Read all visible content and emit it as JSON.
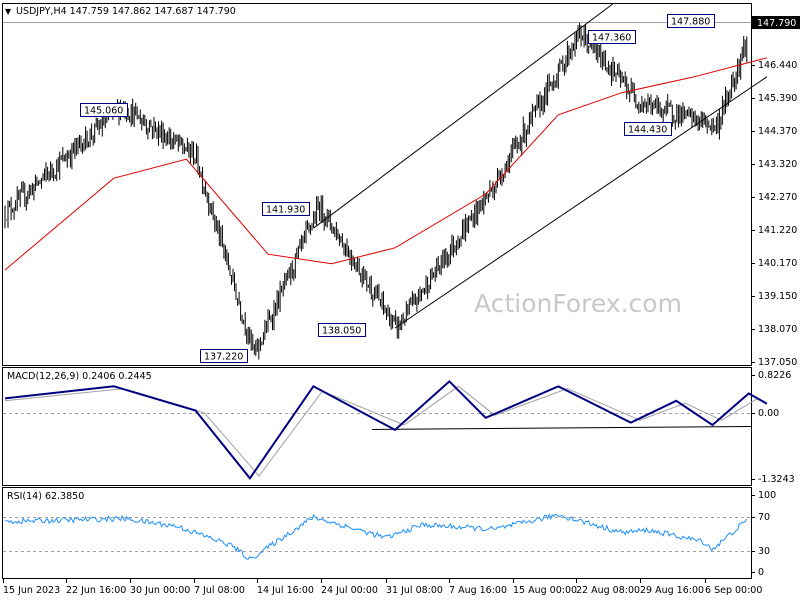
{
  "header": {
    "title": "USDJPY,H4  147.759 147.862 147.687 147.790"
  },
  "watermark": "ActionForex.com",
  "price_panel": {
    "current_price_label": "147.790",
    "y_ticks": [
      "147.790",
      "146.440",
      "145.390",
      "144.370",
      "143.320",
      "142.270",
      "141.220",
      "140.170",
      "139.150",
      "138.070",
      "137.050"
    ],
    "annotations": [
      {
        "text": "145.060",
        "x": "2023-06-27 20:00",
        "y": 145.06
      },
      {
        "text": "137.220",
        "x": "2023-07-12 12:00",
        "y": 137.22
      },
      {
        "text": "141.930",
        "x": "2023-07-19 16:00",
        "y": 141.93
      },
      {
        "text": "138.050",
        "x": "2023-07-28 04:00",
        "y": 138.05
      },
      {
        "text": "147.360",
        "x": "2023-08-17 08:00",
        "y": 147.36
      },
      {
        "text": "144.430",
        "x": "2023-09-01 12:00",
        "y": 144.43
      },
      {
        "text": "147.880",
        "x": "2023-09-05 16:00",
        "y": 147.88
      }
    ]
  },
  "macd_panel": {
    "title": "MACD(12,26,9) 0.2406 0.2445",
    "y_ticks": [
      "0.8226",
      "0.00",
      "-1.3243"
    ]
  },
  "rsi_panel": {
    "title": "RSI(14) 62.3850",
    "y_ticks": [
      "100",
      "70",
      "30",
      "0"
    ],
    "levels": [
      70,
      30
    ]
  },
  "x_axis": {
    "labels": [
      "15 Jun 2023",
      "22 Jun 16:00",
      "30 Jun 00:00",
      "7 Jul 08:00",
      "14 Jul 16:00",
      "24 Jul 00:00",
      "31 Jul 08:00",
      "7 Aug 16:00",
      "15 Aug 00:00",
      "22 Aug 08:00",
      "29 Aug 16:00",
      "6 Sep 00:00"
    ]
  },
  "colors": {
    "candles": "#000000",
    "moving_average": "#e00000",
    "macd_line": "#000080",
    "macd_signal": "#a0a0a0",
    "rsi_line": "#1e90ff",
    "label_border": "#000080",
    "watermark": "#c8c8c8"
  },
  "chart_data": {
    "type": "candlestick",
    "symbol": "USDJPY",
    "timeframe": "H4",
    "ylim": [
      136.9,
      148.3
    ],
    "key_points": {
      "x": [
        "2023-06-15",
        "2023-06-27 20:00",
        "2023-07-06",
        "2023-07-12 12:00",
        "2023-07-19 16:00",
        "2023-07-28 04:00",
        "2023-08-08",
        "2023-08-17 08:00",
        "2023-08-24",
        "2023-09-01 12:00",
        "2023-09-05 16:00",
        "2023-09-07"
      ],
      "y": [
        141.7,
        145.06,
        143.5,
        137.22,
        141.93,
        138.05,
        142.6,
        147.36,
        145.2,
        144.43,
        147.88,
        147.79
      ]
    },
    "moving_average": {
      "x": [
        "2023-06-15",
        "2023-06-27",
        "2023-07-05",
        "2023-07-14",
        "2023-07-21",
        "2023-07-28",
        "2023-08-07",
        "2023-08-15",
        "2023-08-22",
        "2023-08-30",
        "2023-09-07"
      ],
      "y": [
        139.9,
        142.8,
        143.4,
        140.4,
        140.1,
        140.6,
        142.3,
        144.8,
        145.5,
        146.0,
        146.6
      ]
    },
    "channel_lines": [
      {
        "x": [
          "2023-07-19",
          "2023-08-21"
        ],
        "y": [
          141.22,
          148.3
        ]
      },
      {
        "x": [
          "2023-07-28",
          "2023-09-07"
        ],
        "y": [
          138.07,
          146.0
        ]
      }
    ],
    "macd": {
      "x": [
        "2023-06-15",
        "2023-06-27",
        "2023-07-06",
        "2023-07-12",
        "2023-07-19",
        "2023-07-28",
        "2023-08-03",
        "2023-08-07",
        "2023-08-15",
        "2023-08-23",
        "2023-08-28",
        "2023-09-01",
        "2023-09-05",
        "2023-09-07"
      ],
      "y": [
        0.35,
        0.6,
        0.1,
        -1.3,
        0.6,
        -0.3,
        0.7,
        -0.05,
        0.6,
        -0.15,
        0.3,
        -0.2,
        0.45,
        0.24
      ]
    },
    "macd_signal": {
      "x": [
        "2023-06-15",
        "2023-06-28",
        "2023-07-07",
        "2023-07-13",
        "2023-07-20",
        "2023-07-29",
        "2023-08-04",
        "2023-08-08",
        "2023-08-16",
        "2023-08-24",
        "2023-08-29",
        "2023-09-02",
        "2023-09-06",
        "2023-09-07"
      ],
      "y": [
        0.3,
        0.55,
        0.05,
        -1.25,
        0.5,
        -0.2,
        0.6,
        0.0,
        0.55,
        -0.1,
        0.25,
        -0.1,
        0.35,
        0.24
      ]
    },
    "rsi": {
      "x": [
        "2023-06-15",
        "2023-06-28",
        "2023-07-04",
        "2023-07-10",
        "2023-07-12",
        "2023-07-19",
        "2023-07-27",
        "2023-07-31",
        "2023-08-08",
        "2023-08-15",
        "2023-08-22",
        "2023-08-25",
        "2023-08-31",
        "2023-09-01",
        "2023-09-05",
        "2023-09-07"
      ],
      "y": [
        66,
        70,
        60,
        35,
        17,
        72,
        45,
        62,
        56,
        75,
        52,
        55,
        40,
        30,
        70,
        62
      ]
    }
  }
}
